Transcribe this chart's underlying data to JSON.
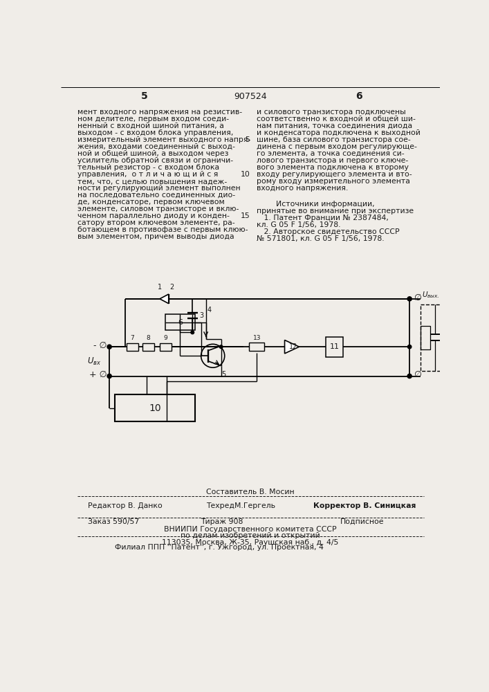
{
  "page_number_center": "907524",
  "page_number_left": "5",
  "page_number_right": "6",
  "background_color": "#f0ede8",
  "text_color": "#1a1a1a",
  "left_column_text": [
    "мент входного напряжения на резистив-",
    "ном делителе, первым входом соеди-",
    "ненный с входной шиной питания, а",
    "выходом - с входом блока управления,",
    "измерительный элемент выходного напря-",
    "жения, входами соединенный с выход-",
    "ной и общей шиной, а выходом через",
    "усилитель обратной связи и ограничи-",
    "тельный резистор - с входом блока",
    "управления,  о т л и ч а ю щ и й с я",
    "тем, что, с целью повышения надеж-",
    "ности регулирующий элемент выполнен",
    "на последовательно соединенных дио-",
    "де, конденсаторе, первом ключевом",
    "элементе, силовом транзисторе и вклю-",
    "ченном параллельно диоду и конден-",
    "сатору втором ключевом элементе, ра-",
    "ботающем в противофазе с первым клюю-",
    "вым элементом, причем выводы диода"
  ],
  "right_column_text": [
    "и силового транзистора подключены",
    "соответственно к входной и общей ши-",
    "нам питания, точка соединения диода",
    "и конденсатора подключена к выходной",
    "шине, база силового транзистора сое-",
    "динена с первым входом регулирующе-",
    "го элемента, а точка соединения си-",
    "лового транзистора и первого ключе-",
    "вого элемента подключена к второму",
    "входу регулирующего элемента и вто-",
    "рому входу измерительного элемента",
    "входного напряжения."
  ],
  "sources_header": "        Источники информации,",
  "sources_subheader": "принятые во внимание при экспертизе",
  "source1": "   1. Патент Франции № 2387484,",
  "source1b": "кл. G 05 F 1/56, 1978.",
  "source2": "   2. Авторское свидетельство СССР",
  "source2b": "№ 571801, кл. G 05 F 1/56, 1978.",
  "footer_editor": "Редактор В. Данко",
  "footer_composer": "Составитель В. Мосин",
  "footer_techred": "ТехредМ.Гергель",
  "footer_corrector": "Корректор В. Синицкая",
  "footer_order": "Заказ 590/57",
  "footer_tirazh": "Тираж 908",
  "footer_podpisnoe": "Подписное",
  "footer_vnipi": "ВНИИПИ Государственного комитета СССР",
  "footer_po_delam": "по делам изобретений и открытий",
  "footer_address": "113035, Москва, Ж-35, Раушская наб., д. 4/5",
  "footer_filial": "Филиал ППП ''Патент'', г. Ужгород, ул. Проектная, 4"
}
